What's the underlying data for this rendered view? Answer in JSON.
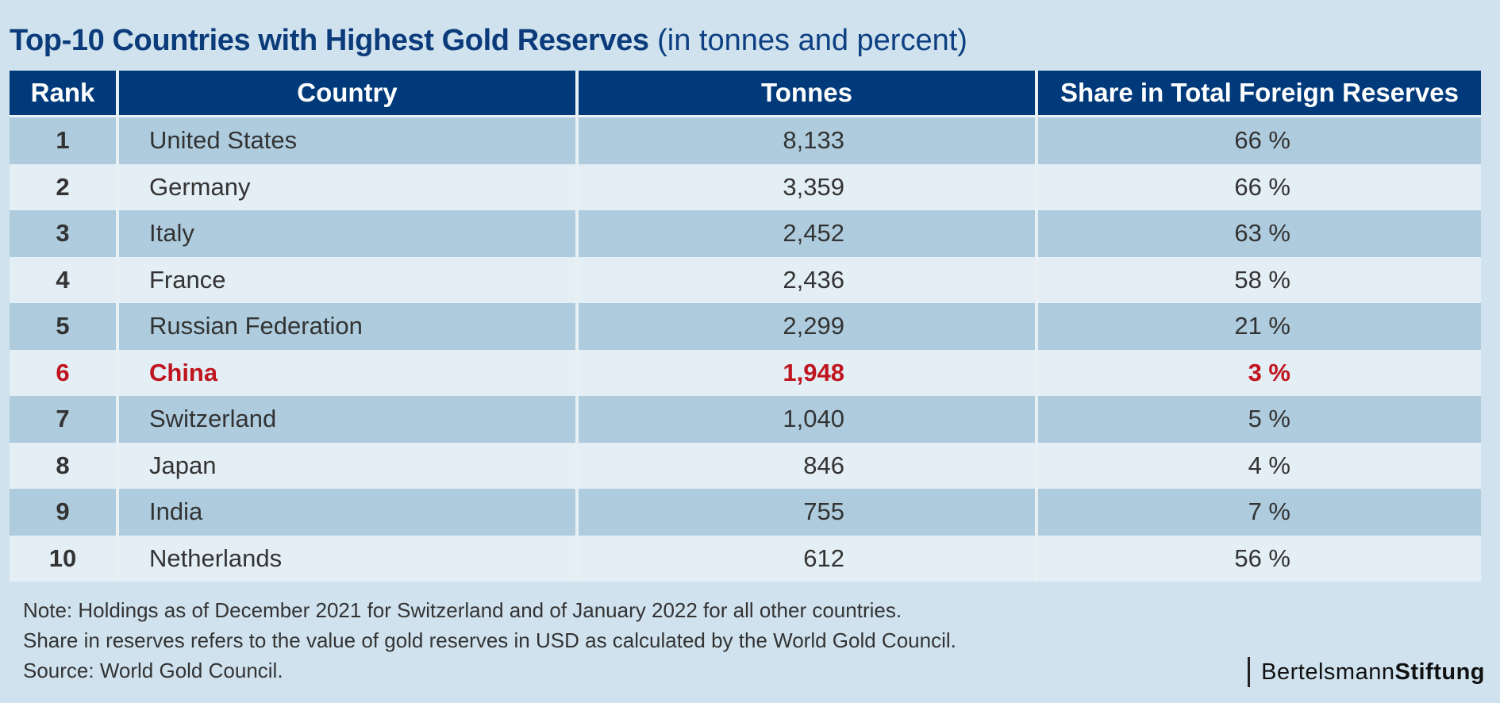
{
  "title": {
    "main": "Top-10 Countries with Highest Gold Reserves",
    "sub": "(in tonnes and percent)"
  },
  "headers": {
    "rank": "Rank",
    "country": "Country",
    "tonnes": "Tonnes",
    "share": "Share in Total Foreign Reserves"
  },
  "rows": [
    {
      "rank": "1",
      "country": "United States",
      "tonnes": "8,133",
      "share": "66 %"
    },
    {
      "rank": "2",
      "country": "Germany",
      "tonnes": "3,359",
      "share": "66 %"
    },
    {
      "rank": "3",
      "country": "Italy",
      "tonnes": "2,452",
      "share": "63 %"
    },
    {
      "rank": "4",
      "country": "France",
      "tonnes": "2,436",
      "share": "58 %"
    },
    {
      "rank": "5",
      "country": "Russian Federation",
      "tonnes": "2,299",
      "share": "21 %"
    },
    {
      "rank": "6",
      "country": "China",
      "tonnes": "1,948",
      "share": "3 %"
    },
    {
      "rank": "7",
      "country": "Switzerland",
      "tonnes": "1,040",
      "share": "5 %"
    },
    {
      "rank": "8",
      "country": "Japan",
      "tonnes": "846",
      "share": "4 %"
    },
    {
      "rank": "9",
      "country": "India",
      "tonnes": "755",
      "share": "7 %"
    },
    {
      "rank": "10",
      "country": "Netherlands",
      "tonnes": "612",
      "share": "56 %"
    }
  ],
  "notes": {
    "line1": "Note: Holdings as of December 2021 for Switzerland and of January 2022 for all other countries.",
    "line2": "Share in reserves refers to the value of gold reserves in USD as calculated by the World Gold Council.",
    "line3": "Source: World Gold Council."
  },
  "logo": {
    "part1": "Bertelsmann",
    "part2": "Stiftung"
  },
  "colors": {
    "background": "#cfe2ee",
    "header": "#003a7a",
    "title": "#0b3b7a",
    "highlight": "#c0141e",
    "row_dark": "#aeccde",
    "row_light": "#e3eef5"
  },
  "chart_data": {
    "type": "table",
    "title": "Top-10 Countries with Highest Gold Reserves (in tonnes and percent)",
    "columns": [
      "Rank",
      "Country",
      "Tonnes",
      "Share in Total Foreign Reserves"
    ],
    "rows": [
      [
        1,
        "United States",
        8133,
        66
      ],
      [
        2,
        "Germany",
        3359,
        66
      ],
      [
        3,
        "Italy",
        2452,
        63
      ],
      [
        4,
        "France",
        2436,
        58
      ],
      [
        5,
        "Russian Federation",
        2299,
        21
      ],
      [
        6,
        "China",
        1948,
        3
      ],
      [
        7,
        "Switzerland",
        1040,
        5
      ],
      [
        8,
        "Japan",
        846,
        4
      ],
      [
        9,
        "India",
        755,
        7
      ],
      [
        10,
        "Netherlands",
        612,
        56
      ]
    ],
    "highlighted_row": "China"
  }
}
